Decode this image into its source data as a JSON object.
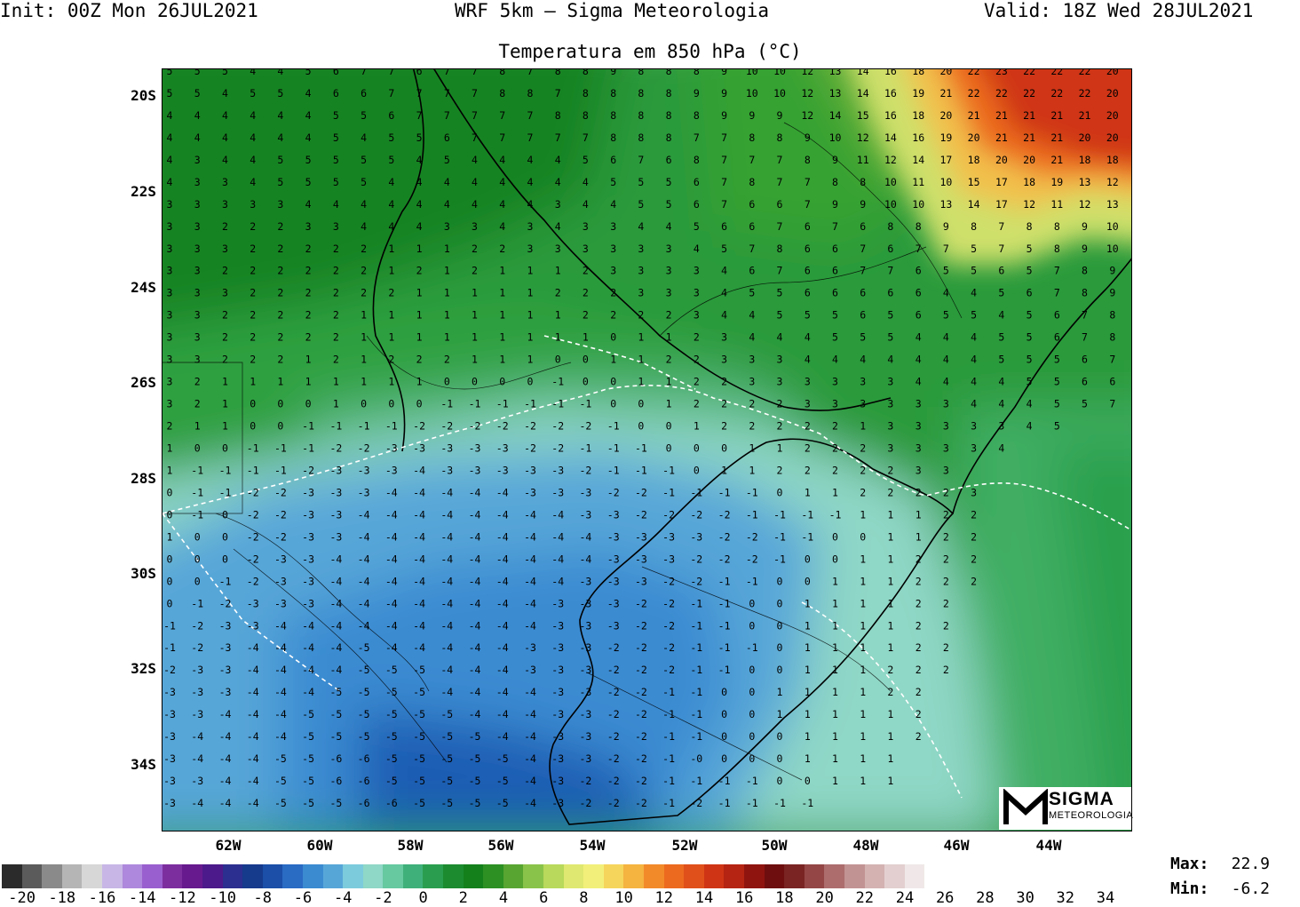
{
  "header": {
    "init": "Init: 00Z Mon 26JUL2021",
    "model": "WRF 5km — Sigma Meteorologia",
    "valid": "Valid: 18Z Wed 28JUL2021",
    "title": "Temperatura em 850 hPa (°C)"
  },
  "lat_labels": [
    "20S",
    "22S",
    "24S",
    "26S",
    "28S",
    "30S",
    "32S",
    "34S"
  ],
  "lon_labels": [
    "62W",
    "60W",
    "58W",
    "56W",
    "54W",
    "52W",
    "50W",
    "48W",
    "46W",
    "44W"
  ],
  "logo": {
    "word": "SIGMA",
    "sub": "METEOROLOGIA"
  },
  "colorbar": {
    "colors": [
      "#2b2b2b",
      "#5b5b5b",
      "#8a8a8a",
      "#b5b5b5",
      "#d7d7d7",
      "#c8b6e6",
      "#ae88dc",
      "#9a5fcf",
      "#7d2e9e",
      "#661a8e",
      "#4c1a8a",
      "#2c2f8f",
      "#163a8c",
      "#1b4fa8",
      "#2a6bc4",
      "#3b8bd1",
      "#57a6d8",
      "#7ccbdc",
      "#8fd7c6",
      "#66c9a0",
      "#3fb07a",
      "#2a9e4e",
      "#1c8b2f",
      "#14801c",
      "#2c9023",
      "#58a532",
      "#8ac34a",
      "#b8d95b",
      "#dfe870",
      "#f2f07a",
      "#f6d55c",
      "#f5b340",
      "#f28a2a",
      "#ec6a1f",
      "#e0501a",
      "#cf3515",
      "#b52412",
      "#8f1410",
      "#6e0e0e",
      "#7a2424",
      "#944646",
      "#ad6d6d",
      "#c29393",
      "#d4b2b2",
      "#e3cfcf",
      "#f0e8e8"
    ],
    "labels": [
      "-20",
      "-18",
      "-16",
      "-14",
      "-12",
      "-10",
      "-8",
      "-6",
      "-4",
      "-2",
      "0",
      "2",
      "4",
      "6",
      "8",
      "10",
      "12",
      "14",
      "16",
      "18",
      "20",
      "22",
      "24",
      "26",
      "28",
      "30",
      "32",
      "34"
    ]
  },
  "stats": {
    "max_label": "Max:",
    "max_value": "22.9",
    "min_label": "Min:",
    "min_value": "-6.2"
  },
  "map_values": {
    "rows": [
      "5 5 5 4 4 5 6 7 7 6 7 7 8 7 8 8 9 8 8 8 9 10 10 12 13 14 16 18 20 22 23 22 22 22 20",
      "5 5 4 5 5 4 6 6 7 7 7 7 8 8 7 8 8 8 8 9 9 10 10 12 13 14 16 19 21 22 22 22 22 22 20",
      "4 4 4 4 4 4 5 5 6 7 7 7 7 7 8 8 8 8 8 8 9 9 9 12 14 15 16 18 20 21 21 21 21 21 20",
      "4 4 4 4 4 4 5 4 5 5 6 7 7 7 7 7 8 8 8 7 7 8 8 9 10 12 14 16 19 20 21 21 21 20 20",
      "4 3 4 4 5 5 5 5 5 4 5 4 4 4 4 5 6 7 6 8 7 7 7 8 9 11 12 14 17 18 20 20 21 18 18",
      "4 3 3 4 5 5 5 5 4 4 4 4 4 4 4 4 5 5 5 6 7 8 7 7 8 8 10 11 10 15 17 18 19 13 12",
      "3 3 3 3 3 4 4 4 4 4 4 4 4 4 3 4 4 5 5 6 7 6 6 7 9 9 10 10 13 14 17 12 11 12 13",
      "3 3 2 2 2 3 3 4 4 4 3 3 4 3 4 3 3 4 4 5 6 6 7 6 7 6 8 8 9 8 7 8 8 9 10",
      "3 3 3 2 2 2 2 2 1 1 1 2 2 3 3 3 3 3 3 4 5 7 8 6 6 7 6 7 7 5 7 5 8 9 10",
      "3 3 2 2 2 2 2 2 1 2 1 2 1 1 1 2 3 3 3 3 4 6 7 6 6 7 7 6 5 5 6 5 7 8 9",
      "3 3 3 2 2 2 2 2 2 1 1 1 1 1 2 2 2 3 3 3 4 5 5 6 6 6 6 6 4 4 5 6 7 8 9",
      "3 3 2 2 2 2 2 1 1 1 1 1 1 1 1 2 2 2 2 3 4 4 5 5 5 6 5 6 5 5 4 5 6 7 8",
      "3 3 2 2 2 2 2 1 1 1 1 1 1 1 1 1 0 1 1 2 3 4 4 4 5 5 5 4 4 4 5 5 6 7 8",
      "3 3 2 2 2 1 2 1 2 2 2 1 1 1 0 0 1 1 2 2 3 3 3 4 4 4 4 4 4 4 5 5 5 6 7",
      "3 2 1 1 1 1 1 1 1 1 0 0 0 0 -1 0 0 1 1 2 2 3 3 3 3 3 3 4 4 4 4 5 5 6 6",
      "3 2 1 0 0 0 1 0 0 0 -1 -1 -1 -1 -1 -1 0 0 1 2 2 2 2 3 3 3 3 3 3 4 4 4 5 5 7",
      "2 1 1 0 0 -1 -1 -1 -1 -2 -2 -2 -2 -2 -2 -2 -1 0 0 1 2 2 2 2 2 1 3 3 3 3 3 4 5",
      "1 0 0 -1 -1 -1 -2 -2 -3 -3 -3 -3 -3 -2 -2 -1 -1 -1 0 0 0 1 1 2 2 2 3 3 3 3 4",
      "1 -1 -1 -1 -1 -2 -3 -3 -3 -4 -3 -3 -3 -3 -3 -2 -1 -1 -1 0 1 1 2 2 2 2 2 3 3",
      "0 -1 -1 -2 -2 -3 -3 -3 -4 -4 -4 -4 -4 -3 -3 -3 -2 -2 -1 -1 -1 -1 0 1 1 2 2 2 2 3",
      "0 -1 0 -2 -2 -3 -3 -4 -4 -4 -4 -4 -4 -4 -4 -3 -3 -2 -2 -2 -2 -1 -1 -1 -1 1 1 1 2 2",
      "1 0 0 -2 -2 -3 -3 -4 -4 -4 -4 -4 -4 -4 -4 -4 -3 -3 -3 -3 -2 -2 -1 -1 0 0 1 1 2 2",
      "0 0 0 -2 -3 -3 -4 -4 -4 -4 -4 -4 -4 -4 -4 -4 -3 -3 -3 -2 -2 -2 -1 0 0 1 1 2 2 2",
      "0 0 -1 -2 -3 -3 -4 -4 -4 -4 -4 -4 -4 -4 -4 -3 -3 -3 -2 -2 -1 -1 0 0 1 1 1 2 2 2",
      "0 -1 -2 -3 -3 -3 -4 -4 -4 -4 -4 -4 -4 -4 -3 -3 -3 -2 -2 -1 -1 0 0 1 1 1 1 2 2",
      "-1 -2 -3 -3 -4 -4 -4 -4 -4 -4 -4 -4 -4 -4 -3 -3 -3 -2 -2 -1 -1 0 0 1 1 1 1 2 2",
      "-1 -2 -3 -4 -4 -4 -4 -5 -4 -4 -4 -4 -4 -3 -3 -3 -2 -2 -2 -1 -1 -1 0 1 1 1 1 2 2",
      "-2 -3 -3 -4 -4 -4 -4 -5 -5 -5 -4 -4 -4 -3 -3 -3 -2 -2 -2 -1 -1 0 0 1 1 1 2 2 2",
      "-3 -3 -3 -4 -4 -4 -5 -5 -5 -5 -4 -4 -4 -4 -3 -3 -2 -2 -1 -1 0 0 1 1 1 1 2 2",
      "-3 -3 -4 -4 -4 -5 -5 -5 -5 -5 -5 -4 -4 -4 -3 -3 -2 -2 -1 -1 0 0 1 1 1 1 1 2",
      "-3 -4 -4 -4 -4 -5 -5 -5 -5 -5 -5 -5 -4 -4 -3 -3 -2 -2 -1 -1 0 0 0 1 1 1 1 2",
      "-3 -4 -4 -4 -5 -5 -6 -6 -5 -5 -5 -5 -5 -4 -3 -3 -2 -2 -1 -0 0 0 0 1 1 1 1",
      "-3 -3 -4 -4 -5 -5 -6 -6 -5 -5 -5 -5 -5 -4 -3 -2 -2 -2 -1 -1 -1 -1 0 0 1 1 1",
      "-3 -4 -4 -4 -5 -5 -5 -6 -6 -5 -5 -5 -5 -4 -3 -2 -2 -2 -1 -2 -1 -1 -1 -1"
    ]
  }
}
